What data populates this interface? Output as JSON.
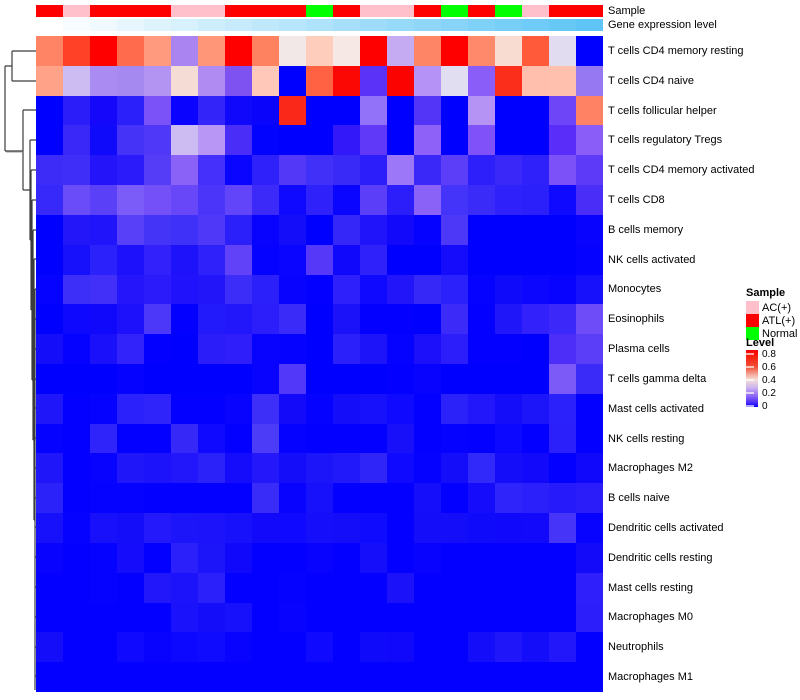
{
  "annotation_labels": {
    "sample": "Sample",
    "gene": "Gene expression level"
  },
  "legend": {
    "sample_title": "Sample",
    "classes": [
      {
        "label": "AC(+)",
        "color": "#FFC0CB"
      },
      {
        "label": "ATL(+)",
        "color": "#FF0000"
      },
      {
        "label": "Normal",
        "color": "#00FF00"
      }
    ],
    "level_title": "Level",
    "level_ticks": [
      "0.8",
      "0.6",
      "0.4",
      "0.2",
      "0"
    ]
  },
  "chart_data": {
    "type": "heatmap",
    "title": "",
    "xlabel": "",
    "ylabel": "",
    "n_columns": 21,
    "legend_position": "right",
    "value_scale": {
      "min": 0,
      "max": 0.8,
      "low_color": "#0000FF",
      "mid_color": "#FFFFFF",
      "high_color": "#FF0000"
    },
    "rows": [
      "T cells CD4 memory resting",
      "T cells CD4 naive",
      "T cells follicular helper",
      "T cells regulatory  Tregs",
      "T cells CD4 memory activated",
      "T cells CD8",
      "B cells memory",
      "NK cells activated",
      "Monocytes",
      "Eosinophils",
      "Plasma cells",
      "T cells gamma delta",
      "Mast cells activated",
      "NK cells resting",
      "Macrophages M2",
      "B cells naive",
      "Dendritic cells activated",
      "Dendritic cells resting",
      "Mast cells resting",
      "Macrophages M0",
      "Neutrophils",
      "Macrophages M1"
    ],
    "column_annotations": {
      "sample_classes": [
        "ATL(+)",
        "AC(+)",
        "ATL(+)",
        "ATL(+)",
        "ATL(+)",
        "AC(+)",
        "AC(+)",
        "ATL(+)",
        "ATL(+)",
        "ATL(+)",
        "Normal",
        "ATL(+)",
        "AC(+)",
        "AC(+)",
        "ATL(+)",
        "Normal",
        "ATL(+)",
        "Normal",
        "AC(+)",
        "ATL(+)",
        "ATL(+)"
      ],
      "sample_colors": {
        "AC(+)": "#FFC0CB",
        "ATL(+)": "#FF0000",
        "Normal": "#00FF00"
      },
      "gene_expression_gradient": {
        "left_color": "#FFFFFF",
        "right_color": "#5FC5F6"
      }
    },
    "cell_colors": [
      [
        "#FF8465",
        "#FF4227",
        "#FF0000",
        "#FF6B4D",
        "#FF9A7E",
        "#AA85F2",
        "#FF9678",
        "#FF0000",
        "#FF8260",
        "#F2E8E8",
        "#FFCDBC",
        "#F5E8E5",
        "#FF0000",
        "#C4ABF2",
        "#FF8567",
        "#FF0000",
        "#FF8A6B",
        "#F8DCD2",
        "#FF5A3A",
        "#E2DCF0",
        "#0000FF"
      ],
      [
        "#FFA288",
        "#CDBCF2",
        "#A98BF2",
        "#A588F0",
        "#B394F2",
        "#F5DCD4",
        "#B08CF2",
        "#7E52F0",
        "#FFC8B8",
        "#0000FF",
        "#FF6243",
        "#FB0805",
        "#5B33F8",
        "#FB0300",
        "#B592F5",
        "#E2DEF2",
        "#8A5CF8",
        "#FB2E1C",
        "#FFBFAC",
        "#FFC0AE",
        "#9678F2"
      ],
      [
        "#0000FF",
        "#2B1CFA",
        "#1508FA",
        "#2B1FFA",
        "#7A52F8",
        "#0A04FF",
        "#3325FA",
        "#0F08FA",
        "#0A05FA",
        "#FA2818",
        "#0000FF",
        "#0000FF",
        "#9272F8",
        "#0000FF",
        "#5335F8",
        "#0000FF",
        "#B493F5",
        "#0000FF",
        "#0000FF",
        "#6E46F8",
        "#FF8265"
      ],
      [
        "#0000FF",
        "#3A28F8",
        "#0F0AFA",
        "#4633F8",
        "#4F38F8",
        "#CDBCF2",
        "#B796F5",
        "#4A2EF8",
        "#0202FF",
        "#0000FF",
        "#0000FF",
        "#3318FA",
        "#6038F8",
        "#0000FF",
        "#8E62F8",
        "#0000FF",
        "#8050F8",
        "#0000FF",
        "#0000FF",
        "#5A2EF8",
        "#8A5CF8"
      ],
      [
        "#3D2BF8",
        "#3F2DF8",
        "#2314FA",
        "#2B1BFA",
        "#553DF8",
        "#8A62F8",
        "#4430FA",
        "#0A05FF",
        "#2F21FA",
        "#5338F8",
        "#4030F8",
        "#3A2AF8",
        "#2B1EFA",
        "#9C78F8",
        "#3A28F8",
        "#5C3EF8",
        "#2D1FFA",
        "#3A28F8",
        "#2F21FA",
        "#7C52F8",
        "#5C3AF8"
      ],
      [
        "#3629FA",
        "#6A4DF8",
        "#5A41F8",
        "#7C5CF8",
        "#7350F8",
        "#6747F8",
        "#4A35F8",
        "#6245F8",
        "#3C2BF8",
        "#0F0AFF",
        "#2F21FA",
        "#0A05FF",
        "#5A3EF8",
        "#2B1EFA",
        "#8A62F8",
        "#4433F8",
        "#3A2BF8",
        "#2F21FA",
        "#2B1FFA",
        "#0F0AFF",
        "#4A2EF8"
      ],
      [
        "#0000FF",
        "#2317FA",
        "#1F14FA",
        "#5740F8",
        "#4434F8",
        "#4031F8",
        "#5038F8",
        "#2B1FFA",
        "#0703FF",
        "#140DFA",
        "#0000FF",
        "#3527F8",
        "#1F14FA",
        "#1208FA",
        "#0502FF",
        "#4D38F8",
        "#0000FF",
        "#0000FF",
        "#0000FF",
        "#0000FF",
        "#0703FF"
      ],
      [
        "#0000FF",
        "#1710FA",
        "#2B21FA",
        "#1C11FA",
        "#3221FA",
        "#1D12FA",
        "#2F21FA",
        "#6142F8",
        "#0502FF",
        "#0A05FF",
        "#5538F8",
        "#0F08FA",
        "#2F21FA",
        "#0000FF",
        "#0000FF",
        "#140CFA",
        "#0000FF",
        "#0000FF",
        "#0000FF",
        "#0000FF",
        "#0502FF"
      ],
      [
        "#0502FF",
        "#3D2EF8",
        "#4330F8",
        "#2415FA",
        "#2B1BFA",
        "#2012FA",
        "#2315FA",
        "#3D2DF8",
        "#2B1FFA",
        "#0703FF",
        "#0300FF",
        "#2D20FA",
        "#0F0AFF",
        "#2315FA",
        "#3629F8",
        "#2B21FA",
        "#0502FF",
        "#0F0AFA",
        "#0C06FF",
        "#0703FF",
        "#1710FA"
      ],
      [
        "#0000FF",
        "#0F08FF",
        "#0F08FA",
        "#1D10FA",
        "#4C38F8",
        "#0300FF",
        "#221AFA",
        "#2217FA",
        "#2B1EFA",
        "#3A2BF8",
        "#0000FF",
        "#1C12FA",
        "#0300FF",
        "#0300FF",
        "#0000FF",
        "#3C2BF8",
        "#0300FF",
        "#1F16FA",
        "#3221FA",
        "#3C28F8",
        "#6E4DF8"
      ],
      [
        "#140DFA",
        "#0502FF",
        "#1A10FA",
        "#3123FA",
        "#0300FF",
        "#0000FF",
        "#2B1CFA",
        "#2F1EFA",
        "#0703FF",
        "#0502FF",
        "#0000FF",
        "#2B1FFA",
        "#1D14FA",
        "#0502FF",
        "#1C10FA",
        "#2B1EFA",
        "#0300FF",
        "#0300FF",
        "#0000FF",
        "#4C2EF8",
        "#5A3EF8"
      ],
      [
        "#0000FF",
        "#0000FF",
        "#0000FF",
        "#0502FF",
        "#0000FF",
        "#0000FF",
        "#0000FF",
        "#0000FF",
        "#0703FF",
        "#5238F8",
        "#0000FF",
        "#0000FF",
        "#0000FF",
        "#0300FF",
        "#0703FF",
        "#0000FF",
        "#0000FF",
        "#0000FF",
        "#0000FF",
        "#7C5AF8",
        "#3A2BF8"
      ],
      [
        "#1F16FA",
        "#0300FF",
        "#0502FF",
        "#2B21FA",
        "#2F25FA",
        "#0300FF",
        "#0300FF",
        "#0703FF",
        "#3D2FF8",
        "#140AFA",
        "#0502FF",
        "#140DFA",
        "#1710FA",
        "#0F0AFF",
        "#0300FF",
        "#2B22FA",
        "#2117FA",
        "#140DFA",
        "#1C15FA",
        "#2B21FA",
        "#0300FF"
      ],
      [
        "#0502FF",
        "#0300FF",
        "#2F25FA",
        "#0300FF",
        "#0300FF",
        "#3629F8",
        "#0F0AFF",
        "#0300FF",
        "#4C3CF8",
        "#0502FF",
        "#0300FF",
        "#0300FF",
        "#0300FF",
        "#1910FA",
        "#0300FF",
        "#0502FF",
        "#0300FF",
        "#0C08FF",
        "#0300FF",
        "#2B1FFA",
        "#0300FF"
      ],
      [
        "#1F17FA",
        "#0300FF",
        "#0703FF",
        "#1F17FA",
        "#1C13FA",
        "#2117FA",
        "#2B22FA",
        "#140CFA",
        "#2417FA",
        "#140DFA",
        "#1C15FA",
        "#2219FA",
        "#2F25F8",
        "#0F0AFF",
        "#0502FF",
        "#140DFA",
        "#3128FA",
        "#140DFA",
        "#1208FA",
        "#0300FF",
        "#0F08FA"
      ],
      [
        "#2B22FA",
        "#0300FF",
        "#0502FF",
        "#0502FF",
        "#0300FF",
        "#0300FF",
        "#0300FF",
        "#0300FF",
        "#3A2CF8",
        "#0703FF",
        "#1710FA",
        "#0300FF",
        "#0300FF",
        "#0300FF",
        "#140EFA",
        "#0300FF",
        "#140CFA",
        "#2F24FA",
        "#2B20FA",
        "#2619FA",
        "#2B1CFA"
      ],
      [
        "#1710FA",
        "#0502FF",
        "#1810FA",
        "#140DFA",
        "#2319FA",
        "#1D15FA",
        "#1C13FA",
        "#1710FA",
        "#1208FA",
        "#0F0AFF",
        "#140EFA",
        "#140DFA",
        "#0F0BFF",
        "#0300FF",
        "#140DFA",
        "#140DFA",
        "#0F0AFA",
        "#0F08FA",
        "#1208FA",
        "#4634F8",
        "#0703FF"
      ],
      [
        "#0703FF",
        "#0300FF",
        "#0502FF",
        "#140CFA",
        "#0300FF",
        "#2B20FA",
        "#1C15FA",
        "#0F08FA",
        "#0300FF",
        "#0300FF",
        "#0703FF",
        "#0300FF",
        "#140EFA",
        "#0300FF",
        "#0703FF",
        "#0300FF",
        "#0300FF",
        "#0300FF",
        "#0300FF",
        "#0300FF",
        "#140AFA"
      ],
      [
        "#0300FF",
        "#0300FF",
        "#0502FF",
        "#0300FF",
        "#2117FA",
        "#1C13FA",
        "#2B1FFA",
        "#0300FF",
        "#0300FF",
        "#0502FF",
        "#0300FF",
        "#0300FF",
        "#0300FF",
        "#1B12FA",
        "#0300FF",
        "#0300FF",
        "#0300FF",
        "#0300FF",
        "#0300FF",
        "#0300FF",
        "#2F1FFA"
      ],
      [
        "#0300FF",
        "#0300FF",
        "#0300FF",
        "#0300FF",
        "#0300FF",
        "#1A12FA",
        "#140DFA",
        "#1710FA",
        "#0300FF",
        "#0703FF",
        "#0300FF",
        "#0300FF",
        "#0300FF",
        "#0300FF",
        "#0300FF",
        "#0300FF",
        "#0300FF",
        "#0300FF",
        "#0300FF",
        "#0300FF",
        "#2B1EFA"
      ],
      [
        "#140DFA",
        "#0300FF",
        "#0300FF",
        "#0F0AFF",
        "#0703FF",
        "#0C08FF",
        "#0F0BFF",
        "#0703FF",
        "#0300FF",
        "#0300FF",
        "#0F0AFF",
        "#0300FF",
        "#0F0AFA",
        "#0F08FA",
        "#0300FF",
        "#0300FF",
        "#140DFA",
        "#1F17FA",
        "#140DFA",
        "#2117FA",
        "#0300FF"
      ],
      [
        "#0300FF",
        "#0300FF",
        "#0300FF",
        "#0300FF",
        "#0300FF",
        "#0300FF",
        "#0300FF",
        "#0300FF",
        "#0300FF",
        "#0300FF",
        "#0300FF",
        "#0300FF",
        "#0300FF",
        "#0300FF",
        "#0300FF",
        "#0300FF",
        "#0300FF",
        "#0300FF",
        "#0300FF",
        "#0300FF",
        "#0300FF"
      ]
    ]
  }
}
